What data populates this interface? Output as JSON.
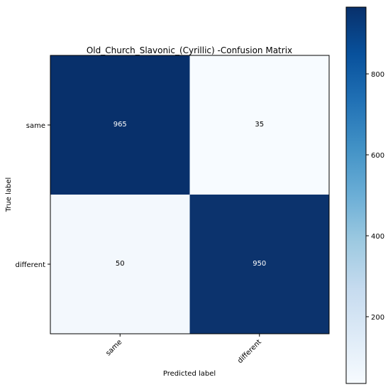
{
  "chart_data": {
    "type": "heatmap",
    "title": "Old_Church_Slavonic_(Cyrillic) -Confusion Matrix",
    "xlabel": "Predicted label",
    "ylabel": "True label",
    "x_categories": [
      "same",
      "different"
    ],
    "y_categories": [
      "same",
      "different"
    ],
    "values": [
      [
        965,
        35
      ],
      [
        50,
        950
      ]
    ],
    "colorbar": {
      "ticks": [
        200,
        400,
        600,
        800
      ],
      "range": [
        35,
        965
      ],
      "colormap": "Blues"
    },
    "colors": {
      "low": "#f7fbff",
      "high": "#08306b"
    }
  }
}
